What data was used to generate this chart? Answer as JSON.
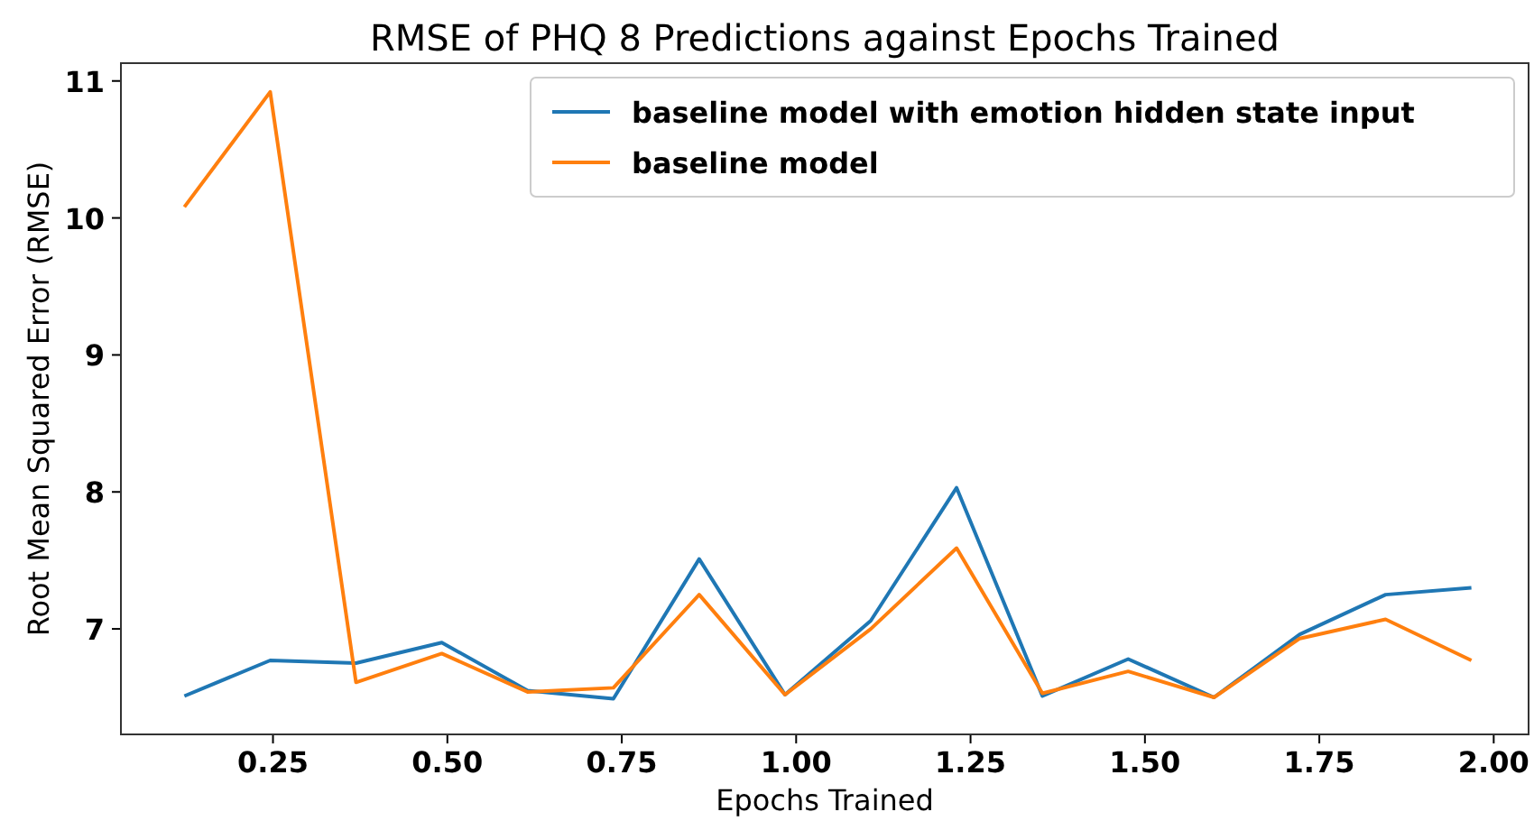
{
  "chart_data": {
    "type": "line",
    "title": "RMSE of PHQ 8 Predictions against Epochs Trained",
    "xlabel": "Epochs Trained",
    "ylabel": "Root Mean Squared Error (RMSE)",
    "x": [
      0.123,
      0.246,
      0.369,
      0.492,
      0.615,
      0.738,
      0.861,
      0.984,
      1.107,
      1.23,
      1.353,
      1.476,
      1.599,
      1.722,
      1.845,
      1.968
    ],
    "series": [
      {
        "name": "baseline model with emotion hidden state input",
        "color": "#1f77b4",
        "values": [
          6.51,
          6.77,
          6.75,
          6.9,
          6.55,
          6.49,
          7.51,
          6.52,
          7.06,
          8.03,
          6.51,
          6.78,
          6.5,
          6.96,
          7.25,
          7.3
        ]
      },
      {
        "name": "baseline model",
        "color": "#ff7f0e",
        "values": [
          10.08,
          10.92,
          6.61,
          6.82,
          6.54,
          6.57,
          7.25,
          6.52,
          7.0,
          7.59,
          6.53,
          6.69,
          6.5,
          6.93,
          7.07,
          6.77
        ]
      }
    ],
    "xlim": [
      0.032,
      2.05
    ],
    "ylim": [
      6.23,
      11.13
    ],
    "xticks": [
      {
        "value": 0.25,
        "label": "0.25"
      },
      {
        "value": 0.5,
        "label": "0.50"
      },
      {
        "value": 0.75,
        "label": "0.75"
      },
      {
        "value": 1.0,
        "label": "1.00"
      },
      {
        "value": 1.25,
        "label": "1.25"
      },
      {
        "value": 1.5,
        "label": "1.50"
      },
      {
        "value": 1.75,
        "label": "1.75"
      },
      {
        "value": 2.0,
        "label": "2.00"
      }
    ],
    "yticks": [
      7,
      8,
      9,
      10,
      11
    ],
    "legend": "top right",
    "grid": false,
    "line_style": "solid",
    "marker": "none"
  }
}
